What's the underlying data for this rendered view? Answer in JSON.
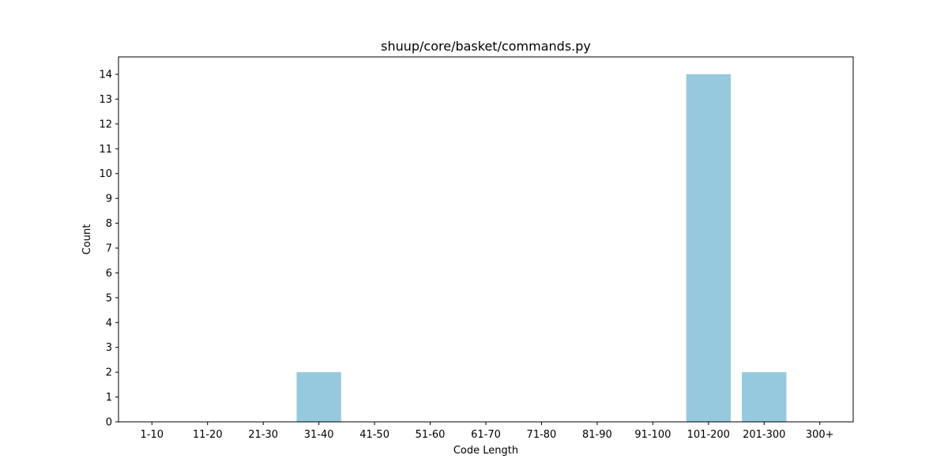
{
  "chart_data": {
    "type": "bar",
    "title": "shuup/core/basket/commands.py",
    "xlabel": "Code Length",
    "ylabel": "Count",
    "categories": [
      "1-10",
      "11-20",
      "21-30",
      "31-40",
      "41-50",
      "51-60",
      "61-70",
      "71-80",
      "81-90",
      "91-100",
      "101-200",
      "201-300",
      "300+"
    ],
    "values": [
      0,
      0,
      0,
      2,
      0,
      0,
      0,
      0,
      0,
      0,
      14,
      2,
      0
    ],
    "ylim": [
      0,
      14.7
    ],
    "yticks": [
      0,
      1,
      2,
      3,
      4,
      5,
      6,
      7,
      8,
      9,
      10,
      11,
      12,
      13,
      14
    ],
    "grid": false,
    "legend": "none",
    "bar_color": "#96c9de"
  }
}
